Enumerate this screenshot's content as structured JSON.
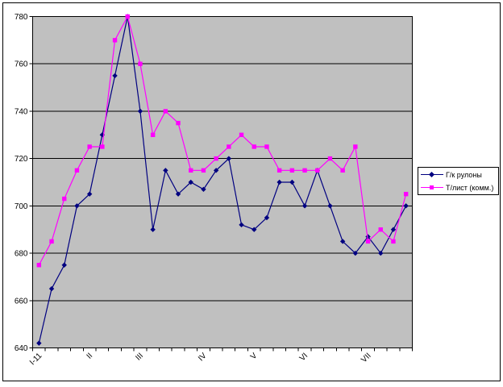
{
  "chart_data": {
    "type": "line",
    "title": "",
    "n_points": 30,
    "x_tick_labels": [
      {
        "index": 0,
        "label": "I-11"
      },
      {
        "index": 4,
        "label": "II"
      },
      {
        "index": 8,
        "label": "III"
      },
      {
        "index": 13,
        "label": "IV"
      },
      {
        "index": 17,
        "label": "V"
      },
      {
        "index": 21,
        "label": "VI"
      },
      {
        "index": 26,
        "label": "VII"
      }
    ],
    "y_axis": {
      "min": 640,
      "max": 780,
      "step": 20,
      "ticks": [
        640,
        660,
        680,
        700,
        720,
        740,
        760,
        780
      ]
    },
    "grid": true,
    "plot_bg": "#C0C0C0",
    "frame_color": "#000000",
    "legend_position": "right",
    "series": [
      {
        "name": "Г/к рулоны",
        "color": "#000080",
        "marker": "diamond",
        "values": [
          642,
          665,
          675,
          700,
          705,
          730,
          755,
          780,
          740,
          690,
          715,
          705,
          710,
          707,
          715,
          720,
          692,
          690,
          695,
          710,
          710,
          700,
          715,
          700,
          685,
          680,
          687,
          680,
          690,
          700
        ]
      },
      {
        "name": "Т/лист (комм.)",
        "color": "#FF00FF",
        "marker": "square",
        "values": [
          675,
          685,
          703,
          715,
          725,
          725,
          770,
          780,
          760,
          730,
          740,
          735,
          715,
          715,
          720,
          725,
          730,
          725,
          725,
          715,
          715,
          715,
          715,
          720,
          715,
          725,
          685,
          690,
          685,
          705
        ]
      }
    ]
  }
}
